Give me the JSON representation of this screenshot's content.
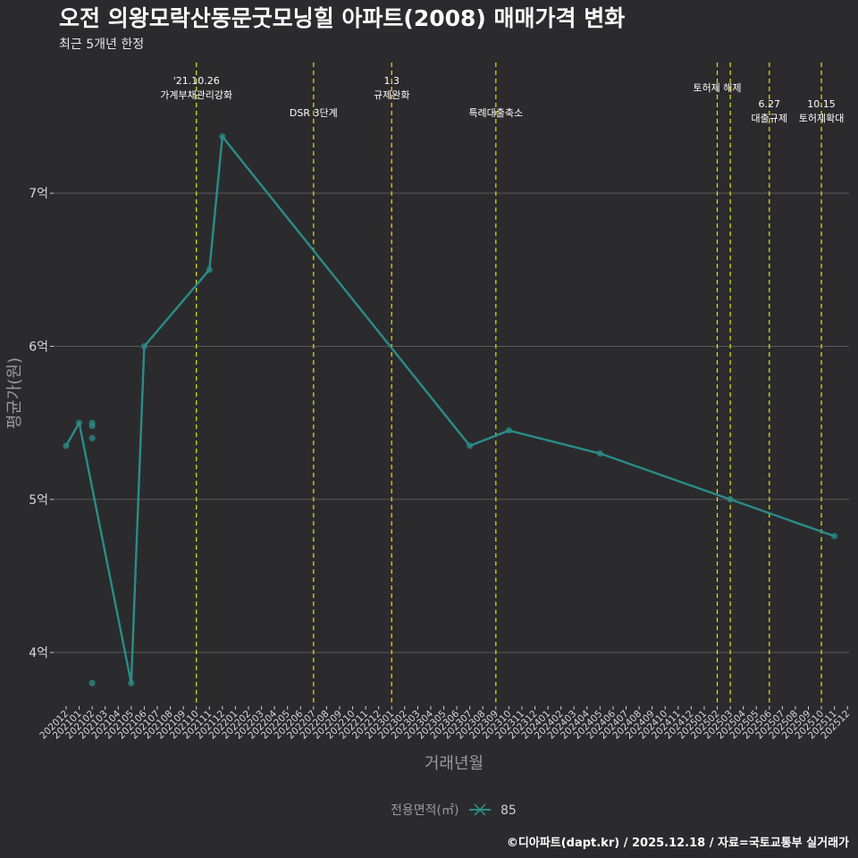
{
  "chart_data": {
    "type": "line",
    "title": "오전 의왕모락산동문굿모닝힐 아파트(2008) 매매가격 변화",
    "subtitle": "최근 5개년 한정",
    "xlabel": "거래년월",
    "ylabel": "평균가(원)",
    "caption": "©디아파트(dapt.kr) / 2025.12.18 / 자료=국토교통부 실거래가",
    "ylim": [
      3.65,
      7.9
    ],
    "yticks": [
      {
        "value": 4,
        "label": "4억"
      },
      {
        "value": 5,
        "label": "5억"
      },
      {
        "value": 6,
        "label": "6억"
      },
      {
        "value": 7,
        "label": "7억"
      }
    ],
    "categories": [
      "202012",
      "202101",
      "202102",
      "202103",
      "202104",
      "202105",
      "202106",
      "202107",
      "202108",
      "202109",
      "202110",
      "202111",
      "202112",
      "202201",
      "202202",
      "202203",
      "202204",
      "202205",
      "202206",
      "202207",
      "202208",
      "202209",
      "202210",
      "202211",
      "202212",
      "202301",
      "202302",
      "202303",
      "202304",
      "202305",
      "202306",
      "202307",
      "202308",
      "202309",
      "202310",
      "202311",
      "202312",
      "202401",
      "202402",
      "202403",
      "202404",
      "202405",
      "202406",
      "202407",
      "202408",
      "202409",
      "202410",
      "202411",
      "202412",
      "202501",
      "202502",
      "202503",
      "202504",
      "202505",
      "202506",
      "202507",
      "202508",
      "202509",
      "202510",
      "202511",
      "202512"
    ],
    "series": [
      {
        "name": "85",
        "color": "#2a8c8a",
        "line": [
          {
            "x": "202012",
            "y": 5.35
          },
          {
            "x": "202101",
            "y": 5.5
          },
          {
            "x": "202105",
            "y": 3.8
          },
          {
            "x": "202106",
            "y": 6.0
          },
          {
            "x": "202111",
            "y": 6.5
          },
          {
            "x": "202112",
            "y": 7.37
          },
          {
            "x": "202307",
            "y": 5.35
          },
          {
            "x": "202310",
            "y": 5.45
          },
          {
            "x": "202405",
            "y": 5.3
          },
          {
            "x": "202503",
            "y": 5.0
          },
          {
            "x": "202511",
            "y": 4.76
          }
        ],
        "points": [
          {
            "x": "202012",
            "y": 5.35
          },
          {
            "x": "202101",
            "y": 5.5
          },
          {
            "x": "202102",
            "y": 5.5
          },
          {
            "x": "202102",
            "y": 5.48
          },
          {
            "x": "202102",
            "y": 5.4
          },
          {
            "x": "202102",
            "y": 3.8
          },
          {
            "x": "202105",
            "y": 3.8
          },
          {
            "x": "202106",
            "y": 6.0
          },
          {
            "x": "202111",
            "y": 6.5
          },
          {
            "x": "202112",
            "y": 7.37
          },
          {
            "x": "202307",
            "y": 5.35
          },
          {
            "x": "202310",
            "y": 5.45
          },
          {
            "x": "202405",
            "y": 5.3
          },
          {
            "x": "202503",
            "y": 5.0
          },
          {
            "x": "202511",
            "y": 4.76
          }
        ]
      }
    ],
    "events": [
      {
        "x": "202110",
        "lines": [
          "'21.10.26",
          "가계부채관리강화"
        ],
        "level": "top"
      },
      {
        "x": "202207",
        "lines": [
          "DSR 3단계"
        ],
        "level": "low"
      },
      {
        "x": "202301",
        "lines": [
          "1.3",
          "규제완화"
        ],
        "level": "top"
      },
      {
        "x": "202309",
        "lines": [
          "특례대출축소"
        ],
        "level": "low"
      },
      {
        "x": "202502",
        "lines": [
          "토허제 해제"
        ],
        "level": "mid"
      },
      {
        "x": "202503",
        "lines": [],
        "level": "none"
      },
      {
        "x": "202506",
        "lines": [
          "6.27",
          "대출규제"
        ],
        "level": "low2"
      },
      {
        "x": "202510",
        "lines": [
          "10.15",
          "토허제확대"
        ],
        "level": "low2"
      }
    ],
    "legend": {
      "title": "전용면적(㎡)",
      "items": [
        {
          "label": "85",
          "color": "#2a8c8a"
        }
      ],
      "position": "bottom"
    },
    "event_line_color": "#e6e600",
    "grid_color": "#5a5a5a"
  }
}
